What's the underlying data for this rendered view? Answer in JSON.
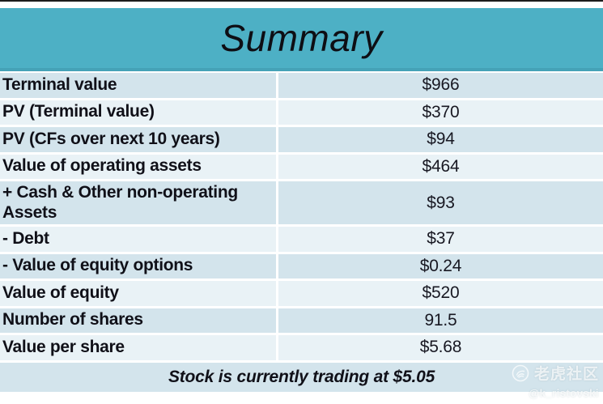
{
  "header": {
    "title": "Summary"
  },
  "table": {
    "rows": [
      {
        "label": "Terminal value",
        "value": "$966"
      },
      {
        "label": "PV (Terminal value)",
        "value": "$370"
      },
      {
        "label": "PV (CFs over next 10 years)",
        "value": "$94"
      },
      {
        "label": "Value of operating assets",
        "value": "$464"
      },
      {
        "label": "+ Cash & Other non-operating Assets",
        "value": "$93"
      },
      {
        "label": "- Debt",
        "value": "$37"
      },
      {
        "label": "- Value of equity options",
        "value": "$0.24"
      },
      {
        "label": "Value of equity",
        "value": "$520"
      },
      {
        "label": "Number of shares",
        "value": "91.5"
      },
      {
        "label": "Value per share",
        "value": "$5.68"
      }
    ],
    "footer": "Stock is currently trading at $5.05"
  },
  "watermark": {
    "community_name": "老虎社区",
    "handle": "@k_ristovski",
    "logo": "tiger-logo"
  },
  "colors": {
    "header_teal": "#4db0c5",
    "header_edge": "#45a2b7",
    "row_dark": "#d3e4ec",
    "row_light": "#e9f2f6",
    "text": "#101018",
    "top_line": "#1c1c1c"
  }
}
